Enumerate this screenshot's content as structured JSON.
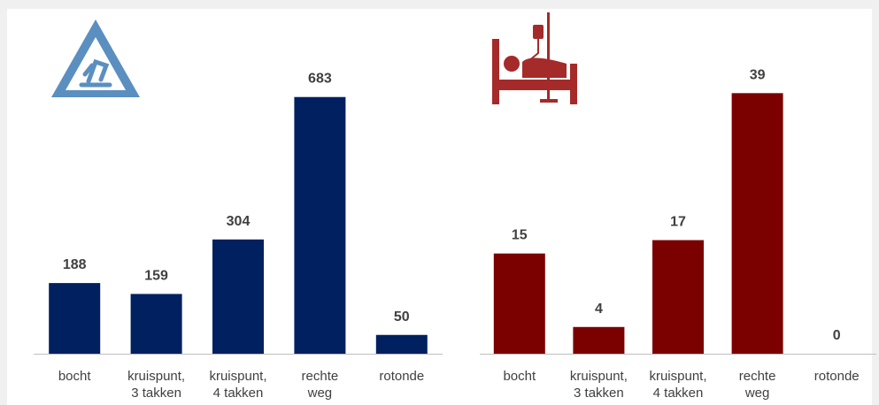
{
  "chart_data": [
    {
      "type": "bar",
      "color": "#002060",
      "categories": [
        "bocht",
        "kruispunt,\n3 takken",
        "kruispunt,\n4 takken",
        "rechte\nweg",
        "rotonde"
      ],
      "values": [
        188,
        159,
        304,
        683,
        50
      ],
      "ylim": [
        0,
        800
      ]
    },
    {
      "type": "bar",
      "color": "#7b0000",
      "categories": [
        "bocht",
        "kruispunt,\n3 takken",
        "kruispunt,\n4 takken",
        "rechte\nweg",
        "rotonde"
      ],
      "values": [
        15,
        4,
        17,
        39,
        0
      ],
      "ylim": [
        0,
        45
      ]
    }
  ]
}
